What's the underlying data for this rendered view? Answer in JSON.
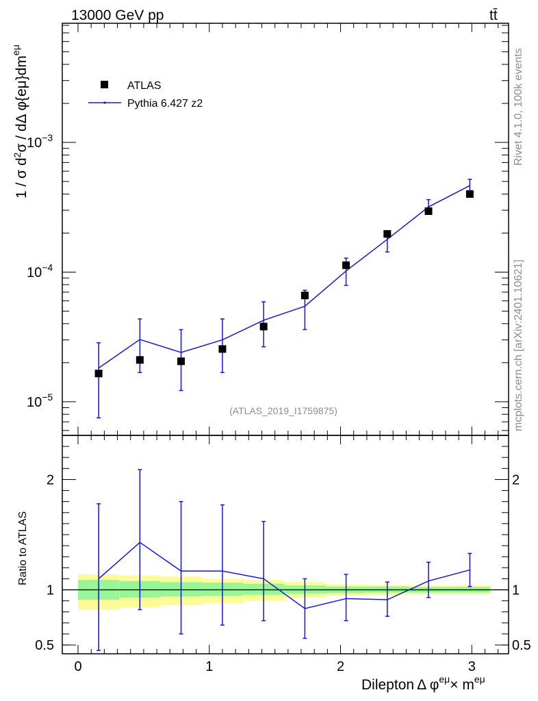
{
  "header": {
    "energy_label": "13000 GeV pp",
    "process_label": "tt̄"
  },
  "side_labels": {
    "rivet": "Rivet 4.1.0,  100k events",
    "source": "mcplots.cern.ch [arXiv:2401.10621]"
  },
  "analysis_tag": "(ATLAS_2019_I1759875)",
  "colors": {
    "mc": "#1515d6",
    "band_inner": "#98f598",
    "band_outer": "#fcfc96",
    "data": "#000000"
  },
  "chart_data": [
    {
      "type": "scatter",
      "panel": "main",
      "yscale": "log",
      "ylabel": "1 / σ  d²σ / dΔ φ{eμ}dm^{eμ}",
      "ylim": [
        5.5e-06,
        0.0083
      ],
      "xlim": [
        -0.12,
        3.28
      ],
      "y_ticks": [
        {
          "value": 1e-05,
          "label": "10⁻⁵"
        },
        {
          "value": 0.0001,
          "label": "10⁻⁴"
        },
        {
          "value": 0.001,
          "label": "10⁻³"
        }
      ],
      "legend": [
        {
          "name": "ATLAS",
          "marker": "square"
        },
        {
          "name": "Pythia 6.427 z2",
          "marker": "line"
        }
      ],
      "legend_position": "top-left",
      "x": [
        0.157,
        0.471,
        0.785,
        1.1,
        1.414,
        1.728,
        2.042,
        2.356,
        2.67,
        2.985
      ],
      "series": [
        {
          "name": "ATLAS",
          "values": [
            1.65e-05,
            2.1e-05,
            2.05e-05,
            2.55e-05,
            3.8e-05,
            6.6e-05,
            0.000113,
            0.000197,
            0.000295,
            0.0004
          ]
        },
        {
          "name": "Pythia 6.427 z2",
          "values": [
            1.82e-05,
            3.02e-05,
            2.4e-05,
            3e-05,
            4.25e-05,
            5.45e-05,
            0.000102,
            0.000179,
            0.000318,
            0.000465
          ],
          "err_low": [
            7.5e-06,
            1.68e-05,
            1.22e-05,
            1.68e-05,
            2.65e-05,
            3.6e-05,
            7.9e-05,
            0.000143,
            0.00028,
            0.0004
          ],
          "err_high": [
            2.85e-05,
            4.35e-05,
            3.6e-05,
            4.35e-05,
            5.9e-05,
            7.25e-05,
            0.000128,
            0.0002,
            0.000362,
            0.00052
          ]
        }
      ]
    },
    {
      "type": "line",
      "panel": "ratio",
      "ylabel": "Ratio to ATLAS",
      "xlabel": "Dilepton Δ φ^{eμ} × m^{eμ}",
      "ylim": [
        0.42,
        2.4
      ],
      "xlim": [
        -0.12,
        3.28
      ],
      "y_ticks": [
        {
          "value": 0.5,
          "label": "0.5"
        },
        {
          "value": 1,
          "label": "1"
        },
        {
          "value": 2,
          "label": "2"
        }
      ],
      "x_ticks": [
        {
          "value": 0,
          "label": "0"
        },
        {
          "value": 1,
          "label": "1"
        },
        {
          "value": 2,
          "label": "2"
        },
        {
          "value": 3,
          "label": "3"
        }
      ],
      "reference": 1,
      "bins": [
        0,
        0.314,
        0.628,
        0.942,
        1.257,
        1.571,
        1.885,
        2.199,
        2.513,
        2.827,
        3.142
      ],
      "band_inner": [
        [
          0.91,
          1.09
        ],
        [
          0.93,
          1.08
        ],
        [
          0.94,
          1.07
        ],
        [
          0.945,
          1.065
        ],
        [
          0.955,
          1.055
        ],
        [
          0.965,
          1.04
        ],
        [
          0.97,
          1.03
        ],
        [
          0.975,
          1.03
        ],
        [
          0.975,
          1.025
        ],
        [
          0.975,
          1.025
        ]
      ],
      "band_outer": [
        [
          0.82,
          1.14
        ],
        [
          0.84,
          1.13
        ],
        [
          0.86,
          1.12
        ],
        [
          0.88,
          1.1
        ],
        [
          0.9,
          1.09
        ],
        [
          0.93,
          1.07
        ],
        [
          0.95,
          1.05
        ],
        [
          0.955,
          1.045
        ],
        [
          0.96,
          1.04
        ],
        [
          0.96,
          1.04
        ]
      ],
      "x": [
        0.157,
        0.471,
        0.785,
        1.1,
        1.414,
        1.728,
        2.042,
        2.356,
        2.67,
        2.985
      ],
      "series": [
        {
          "name": "Pythia 6.427 z2",
          "values": [
            1.1,
            1.43,
            1.17,
            1.17,
            1.1,
            0.83,
            0.92,
            0.91,
            1.08,
            1.18
          ],
          "err_low": [
            0.45,
            0.82,
            0.6,
            0.68,
            0.72,
            0.56,
            0.72,
            0.76,
            0.93,
            1.03
          ],
          "err_high": [
            1.78,
            2.09,
            1.8,
            1.77,
            1.62,
            1.1,
            1.14,
            1.07,
            1.25,
            1.33
          ]
        }
      ]
    }
  ]
}
